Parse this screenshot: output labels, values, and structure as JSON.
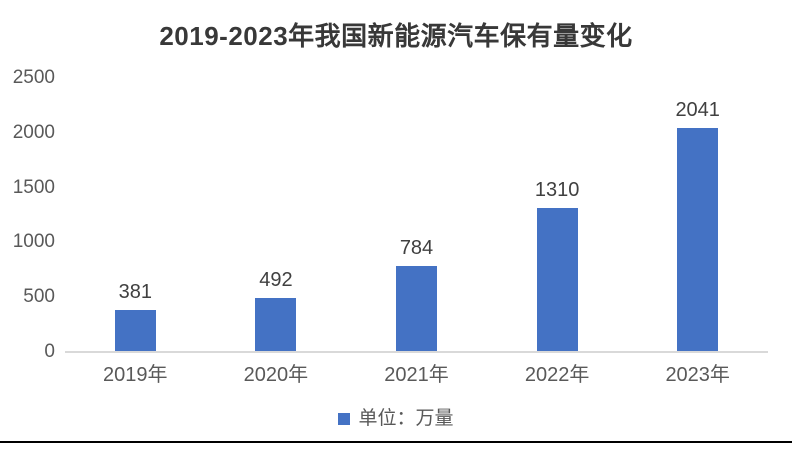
{
  "chart": {
    "title": "2019-2023年我国新能源汽车保有量变化"
  },
  "legend": {
    "label": "单位：万量"
  },
  "colors": {
    "bar": "#4472C4",
    "axis_line": "#D9D9D9",
    "axis_text": "#595959",
    "value_label": "#404040",
    "title_text": "#383838",
    "bottom_rule": "#000000"
  },
  "chart_data": {
    "type": "bar",
    "title": "2019-2023年我国新能源汽车保有量变化",
    "categories": [
      "2019年",
      "2020年",
      "2021年",
      "2022年",
      "2023年"
    ],
    "values": [
      381,
      492,
      784,
      1310,
      2041
    ],
    "data_labels": [
      "381",
      "492",
      "784",
      "1310",
      "2041"
    ],
    "xlabel": "",
    "ylabel": "",
    "y_ticks": [
      0,
      500,
      1000,
      1500,
      2000,
      2500
    ],
    "ylim": [
      0,
      2500
    ],
    "grid": false,
    "legend": [
      "单位：万量"
    ],
    "legend_position": "bottom",
    "bar_color": "#4472C4"
  }
}
